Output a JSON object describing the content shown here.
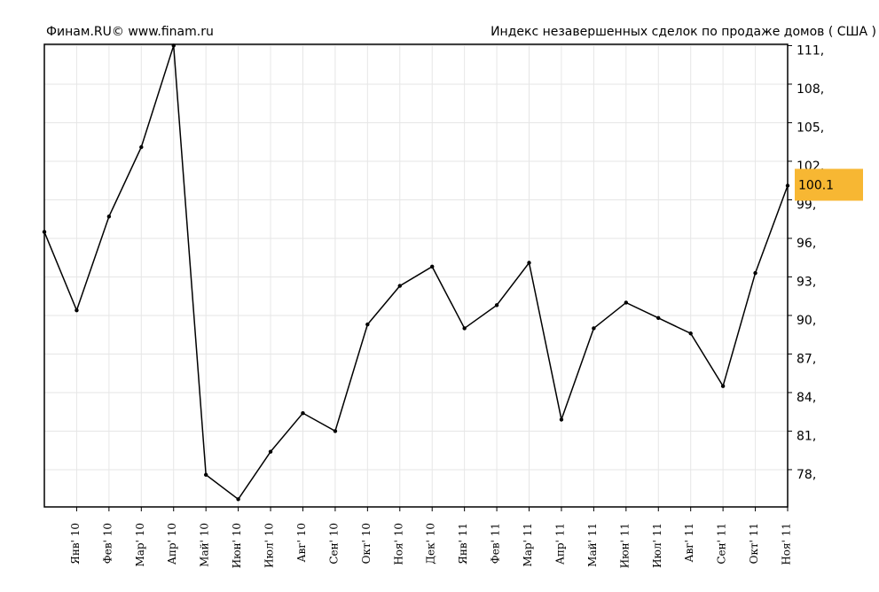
{
  "chart_data": {
    "type": "line",
    "source": "Финам.RU©  www.finam.ru",
    "title": "Индекс незавершенных сделок по продаже домов ( США )",
    "categories": [
      null,
      "Янв' 10",
      "Фев' 10",
      "Мар' 10",
      "Апр' 10",
      "Май' 10",
      "Июн' 10",
      "Июл' 10",
      "Авг' 10",
      "Сен' 10",
      "Окт' 10",
      "Ноя' 10",
      "Дек' 10",
      "Янв' 11",
      "Фев' 11",
      "Мар' 11",
      "Апр' 11",
      "Май' 11",
      "Июн' 11",
      "Июл' 11",
      "Авг' 11",
      "Сен' 11",
      "Окт' 11",
      "Ноя' 11"
    ],
    "values": [
      96.5,
      90.4,
      97.7,
      103.1,
      111,
      77.6,
      75.7,
      79.4,
      82.4,
      81.0,
      89.3,
      92.3,
      93.8,
      89.0,
      90.8,
      94.1,
      81.9,
      89.0,
      91.0,
      89.8,
      88.6,
      84.5,
      93.3,
      100.1
    ],
    "color": "#000000",
    "highlight_color": "#f7b733",
    "ylim": [
      75.1,
      111.1
    ],
    "yticks": [
      {
        "value": 78,
        "label": "78,"
      },
      {
        "value": 81,
        "label": "81,"
      },
      {
        "value": 84,
        "label": "84,"
      },
      {
        "value": 87,
        "label": "87,"
      },
      {
        "value": 90,
        "label": "90,"
      },
      {
        "value": 93,
        "label": "93,"
      },
      {
        "value": 96,
        "label": "96,"
      },
      {
        "value": 99,
        "label": "99,"
      },
      {
        "value": 102,
        "label": "102,"
      },
      {
        "value": 105,
        "label": "105,"
      },
      {
        "value": 108,
        "label": "108,"
      },
      {
        "value": 111,
        "label": "111,"
      }
    ],
    "grid": true
  }
}
